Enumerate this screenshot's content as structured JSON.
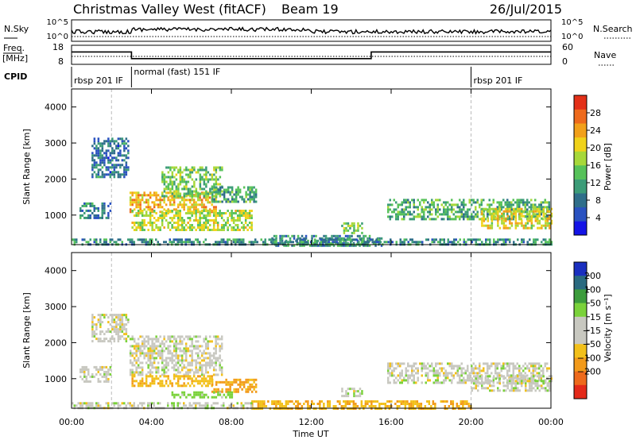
{
  "header": {
    "station": "Christmas Valley West (fitACF)",
    "beam": "Beam 19",
    "date": "26/Jul/2015"
  },
  "status_panels": {
    "nsky_label": "N.Sky",
    "nsky_ticks": [
      "10^5",
      "10^0"
    ],
    "nsearch_label": "N.Search",
    "nsearch_ticks": [
      "10^5",
      "10^0"
    ],
    "freq_label_line1": "Freq.",
    "freq_label_line2": "[MHz]",
    "freq_ticks": [
      "18",
      "8"
    ],
    "nave_label": "Nave",
    "nave_ticks": [
      "60",
      "0"
    ],
    "freq_mhz_segments": [
      {
        "start_h": 0.0,
        "end_h": 3.0,
        "value": 14.5
      },
      {
        "start_h": 3.0,
        "end_h": 15.0,
        "value": 11.0
      },
      {
        "start_h": 15.0,
        "end_h": 24.0,
        "value": 14.5
      }
    ],
    "cpid_label": "CPID",
    "cpid_segments": [
      {
        "label": "rbsp 201 IF",
        "start_h": 0.0
      },
      {
        "label": "normal (fast) 151 IF",
        "start_h": 3.0
      },
      {
        "label": "rbsp 201 IF",
        "start_h": 20.0
      }
    ]
  },
  "chart_data": [
    {
      "type": "heatmap",
      "quantity": "power",
      "ylabel": "Slant Range [km]",
      "ylim": [
        180,
        4500
      ],
      "yticks": [
        "1000",
        "2000",
        "3000",
        "4000"
      ],
      "xlim_hours": [
        0,
        24
      ],
      "colorbar": {
        "label": "Power [dB]",
        "range": [
          0,
          32
        ],
        "ticks": [
          "4",
          "8",
          "12",
          "16",
          "20",
          "24",
          "28"
        ],
        "colors": [
          "#1414e6",
          "#2a52c0",
          "#2f6e8a",
          "#3c9c78",
          "#57c25a",
          "#a7d83a",
          "#f0d21a",
          "#f2a01a",
          "#ee6a1c",
          "#e33018"
        ]
      },
      "regions": [
        {
          "t0": 0.4,
          "t1": 1.9,
          "r0": 900,
          "r1": 1350,
          "value": 9
        },
        {
          "t0": 1.0,
          "t1": 2.8,
          "r0": 2050,
          "r1": 3150,
          "value": 8
        },
        {
          "t0": 2.9,
          "t1": 7.2,
          "r0": 1100,
          "r1": 1650,
          "value": 22
        },
        {
          "t0": 4.5,
          "t1": 7.5,
          "r0": 1500,
          "r1": 2350,
          "value": 15
        },
        {
          "t0": 3.0,
          "t1": 9.0,
          "r0": 600,
          "r1": 1150,
          "value": 18
        },
        {
          "t0": 7.0,
          "t1": 9.2,
          "r0": 1400,
          "r1": 1800,
          "value": 12
        },
        {
          "t0": 10.0,
          "t1": 15.5,
          "r0": 180,
          "r1": 450,
          "value": 10
        },
        {
          "t0": 13.5,
          "t1": 14.5,
          "r0": 500,
          "r1": 800,
          "value": 16
        },
        {
          "t0": 15.8,
          "t1": 23.9,
          "r0": 900,
          "r1": 1450,
          "value": 13
        },
        {
          "t0": 20.5,
          "t1": 24.0,
          "r0": 650,
          "r1": 1200,
          "value": 20
        },
        {
          "t0": 0.0,
          "t1": 24.0,
          "r0": 180,
          "r1": 350,
          "value": 10
        }
      ]
    },
    {
      "type": "heatmap",
      "quantity": "velocity",
      "ylabel": "Slant Range [km]",
      "ylim": [
        180,
        4500
      ],
      "yticks": [
        "1000",
        "2000",
        "3000",
        "4000"
      ],
      "xlim_hours": [
        0,
        24
      ],
      "xticks": [
        "00:00",
        "04:00",
        "08:00",
        "12:00",
        "16:00",
        "20:00",
        "00:00"
      ],
      "xlabel": "Time UT",
      "colorbar": {
        "label": "Velocity [m s⁻¹]",
        "ticks": [
          "200",
          "100",
          "50",
          "15",
          "−15",
          "−50",
          "−100",
          "−200"
        ],
        "colors": [
          "#1a2fbf",
          "#2a6a80",
          "#3c9c3c",
          "#7ad23a",
          "#c8c8c0",
          "#c8c8c0",
          "#f2c01a",
          "#f29a1a",
          "#ee6a1c",
          "#e42a1a"
        ]
      },
      "regions": [
        {
          "t0": 0.4,
          "t1": 1.9,
          "r0": 900,
          "r1": 1350,
          "value": 0
        },
        {
          "t0": 1.0,
          "t1": 2.8,
          "r0": 2050,
          "r1": 2800,
          "value": 0
        },
        {
          "t0": 2.9,
          "t1": 7.5,
          "r0": 1100,
          "r1": 2200,
          "value": 0
        },
        {
          "t0": 3.0,
          "t1": 7.0,
          "r0": 800,
          "r1": 1100,
          "value": -40
        },
        {
          "t0": 7.0,
          "t1": 9.2,
          "r0": 650,
          "r1": 1000,
          "value": -60
        },
        {
          "t0": 5.0,
          "t1": 8.0,
          "r0": 500,
          "r1": 650,
          "value": 30
        },
        {
          "t0": 9.0,
          "t1": 20.0,
          "r0": 180,
          "r1": 400,
          "value": -45
        },
        {
          "t0": 13.5,
          "t1": 14.5,
          "r0": 500,
          "r1": 750,
          "value": 0
        },
        {
          "t0": 15.8,
          "t1": 23.9,
          "r0": 900,
          "r1": 1450,
          "value": 0
        },
        {
          "t0": 20.0,
          "t1": 24.0,
          "r0": 650,
          "r1": 1100,
          "value": 0
        },
        {
          "t0": 0.0,
          "t1": 9.0,
          "r0": 180,
          "r1": 350,
          "value": 0
        }
      ]
    }
  ]
}
